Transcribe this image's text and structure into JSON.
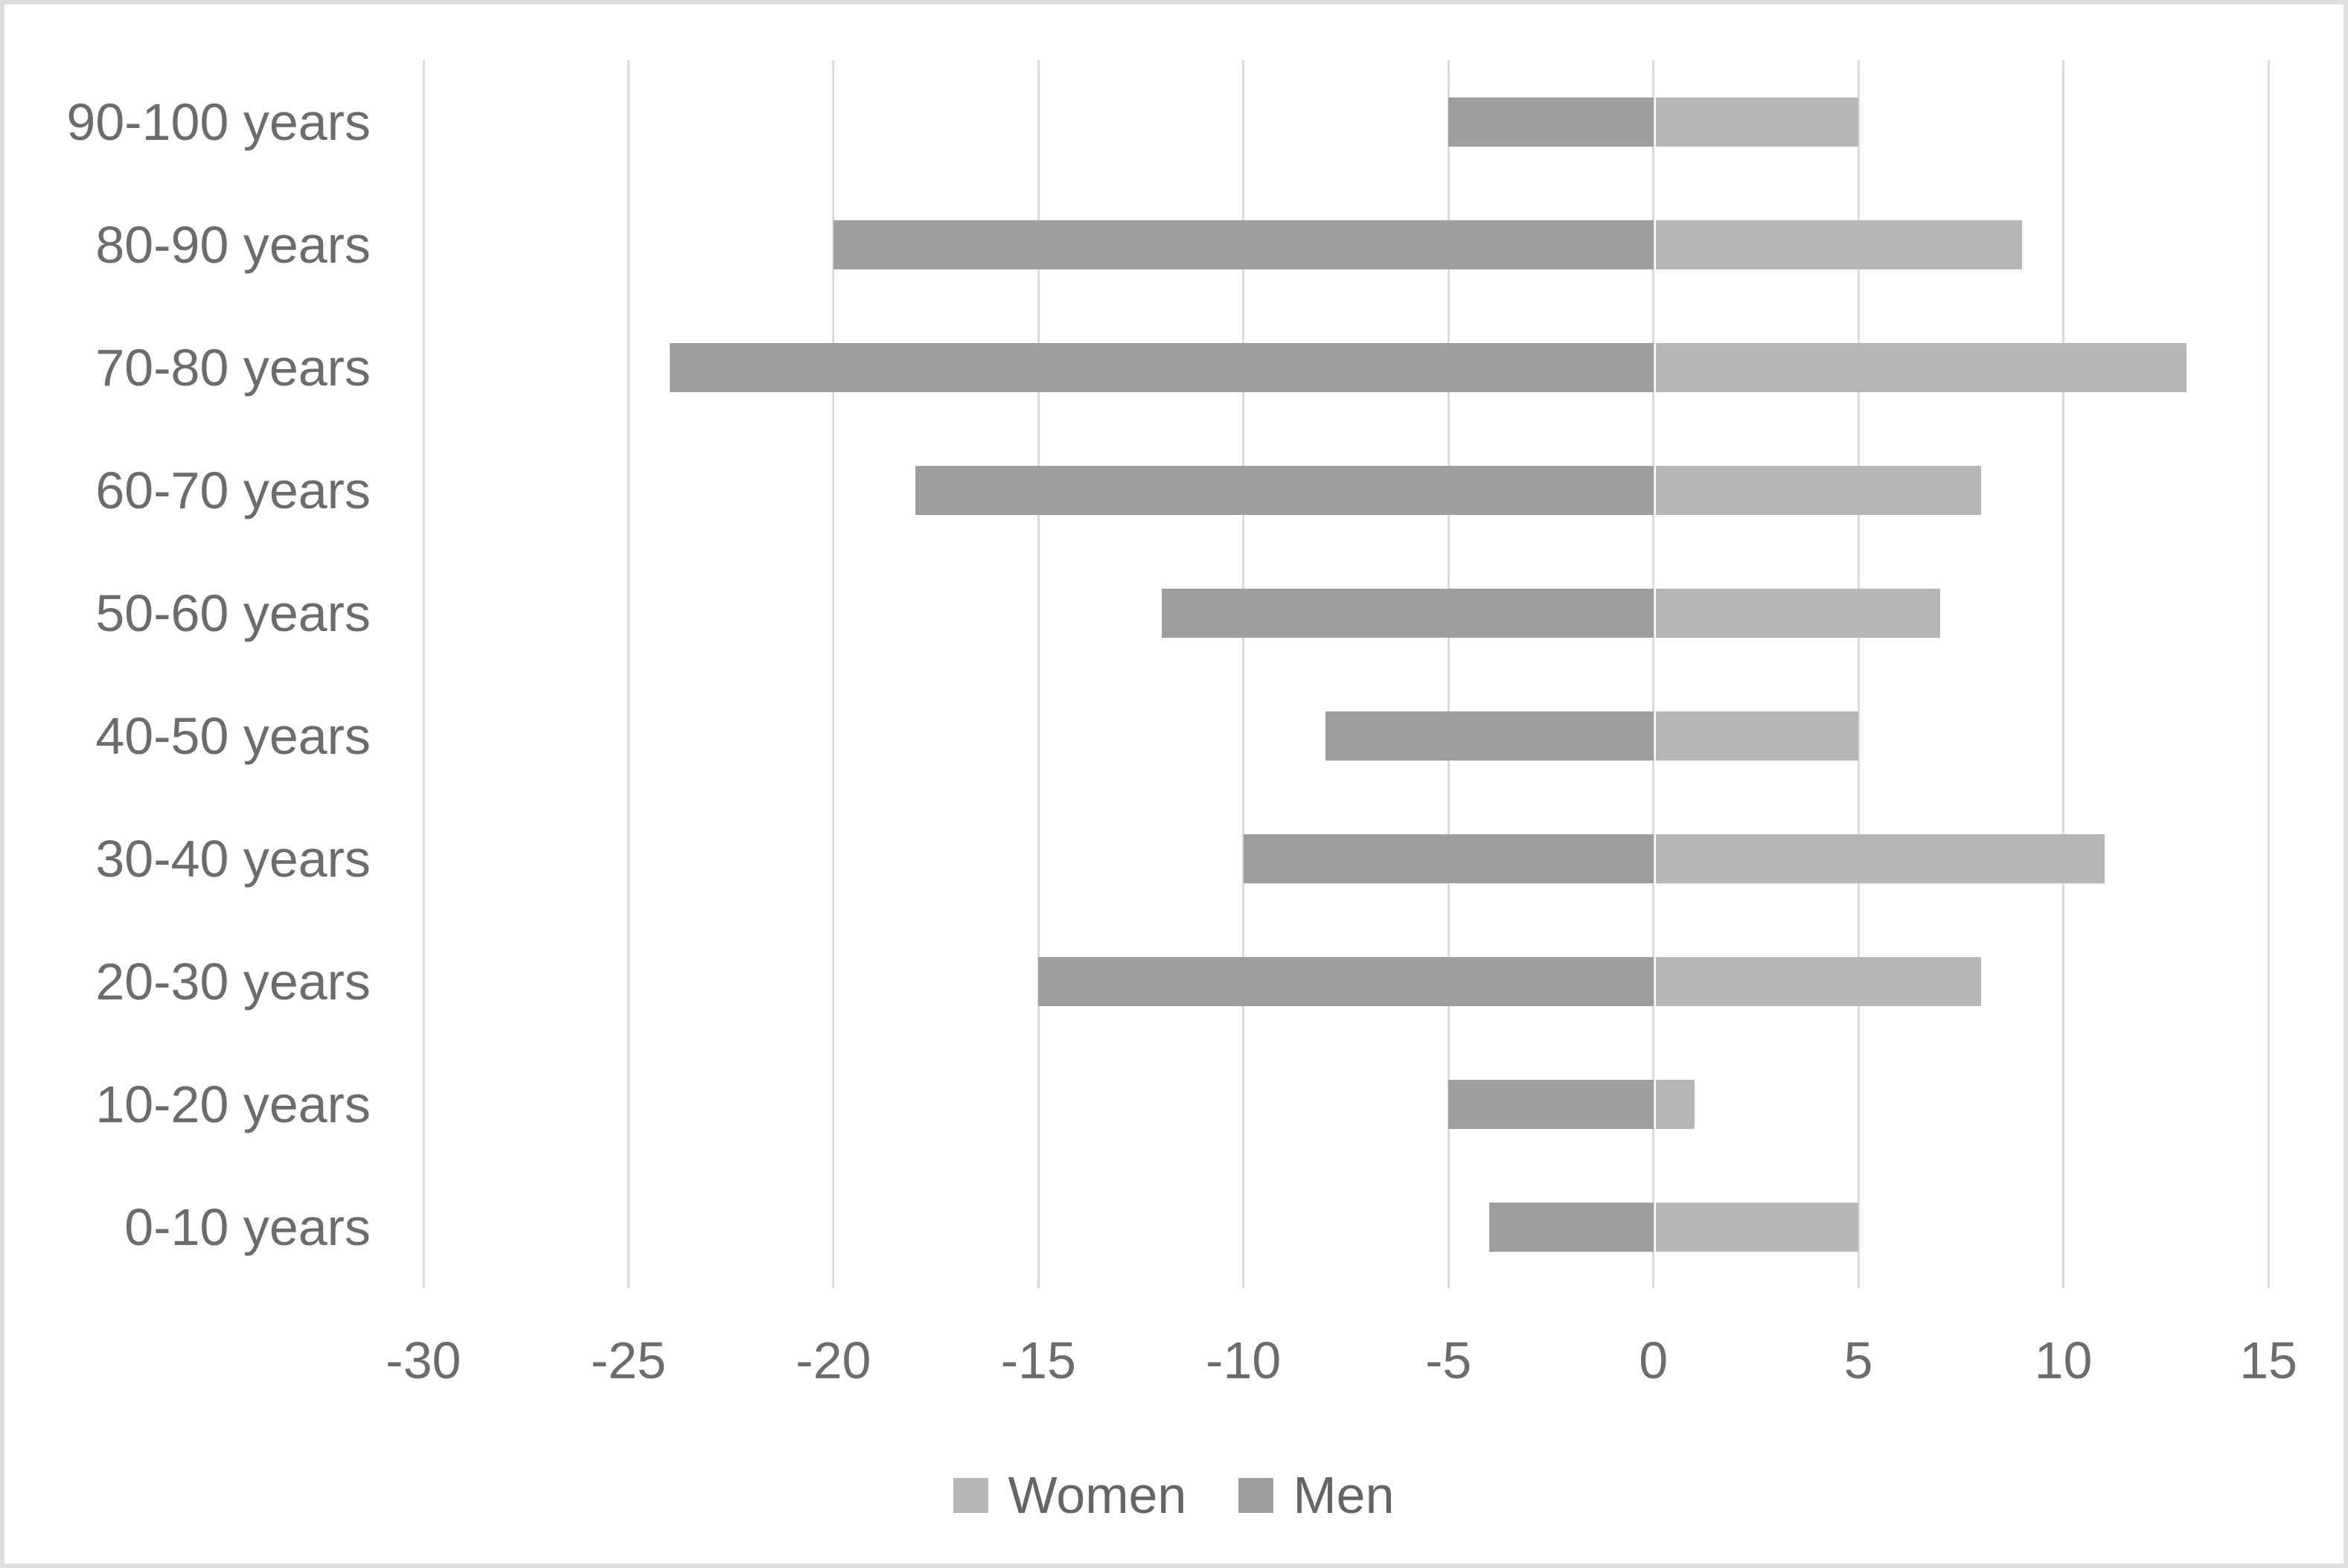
{
  "chart_data": {
    "type": "bar",
    "orientation": "horizontal",
    "title": "",
    "categories": [
      "90-100 years",
      "80-90 years",
      "70-80 years",
      "60-70 years",
      "50-60 years",
      "40-50 years",
      "30-40 years",
      "20-30 years",
      "10-20 years",
      "0-10 years"
    ],
    "series": [
      {
        "name": "Women",
        "color": "#b4b6b8",
        "values": [
          5,
          9,
          13,
          8,
          7,
          5,
          11,
          8,
          1,
          5
        ]
      },
      {
        "name": "Men",
        "color": "#9c9ea0",
        "values": [
          -5,
          -20,
          -24,
          -18,
          -12,
          -8,
          -10,
          -15,
          -5,
          -4
        ]
      }
    ],
    "x_ticks": [
      -30,
      -25,
      -20,
      -15,
      -10,
      -5,
      0,
      5,
      10,
      15
    ],
    "xlim": [
      -30,
      15
    ],
    "grid": true,
    "legend_position": "bottom",
    "xlabel": "",
    "ylabel": ""
  },
  "style": {
    "gridline_color": "#dbdbdb",
    "axis_text_color": "#6a6c6e",
    "legend_text_color": "#636567",
    "frame_color": "#dcdee0",
    "background_color": "#ffffff"
  }
}
